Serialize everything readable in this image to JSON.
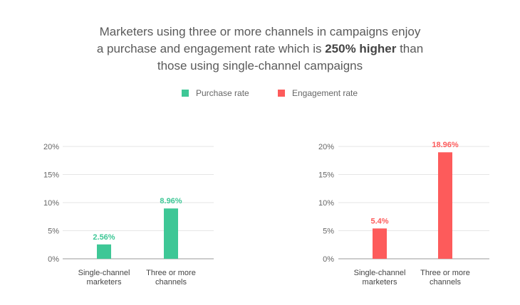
{
  "title": {
    "line1": "Marketers using three or more channels in campaigns enjoy",
    "line2_pre": "a purchase and engagement rate which is ",
    "line2_bold": "250% higher",
    "line2_post": " than",
    "line3": "those using single-channel campaigns"
  },
  "legend": [
    {
      "label": "Purchase rate",
      "color": "#3ec796"
    },
    {
      "label": "Engagement rate",
      "color": "#fd5b5b"
    }
  ],
  "chart_data": [
    {
      "type": "bar",
      "categories": [
        [
          "Single-channel",
          "marketers"
        ],
        [
          "Three or more",
          "channels"
        ]
      ],
      "values": [
        2.56,
        8.96
      ],
      "value_labels": [
        "2.56%",
        "8.96%"
      ],
      "yticks": [
        "0%",
        "5%",
        "10%",
        "15%",
        "20%"
      ],
      "ylim": [
        0,
        20
      ],
      "color": "#3ec796",
      "grid": true
    },
    {
      "type": "bar",
      "categories": [
        [
          "Single-channel",
          "marketers"
        ],
        [
          "Three or more",
          "channels"
        ]
      ],
      "values": [
        5.4,
        18.96
      ],
      "value_labels": [
        "5.4%",
        "18.96%"
      ],
      "yticks": [
        "0%",
        "5%",
        "10%",
        "15%",
        "20%"
      ],
      "ylim": [
        0,
        20
      ],
      "color": "#fd5b5b",
      "grid": true
    }
  ]
}
